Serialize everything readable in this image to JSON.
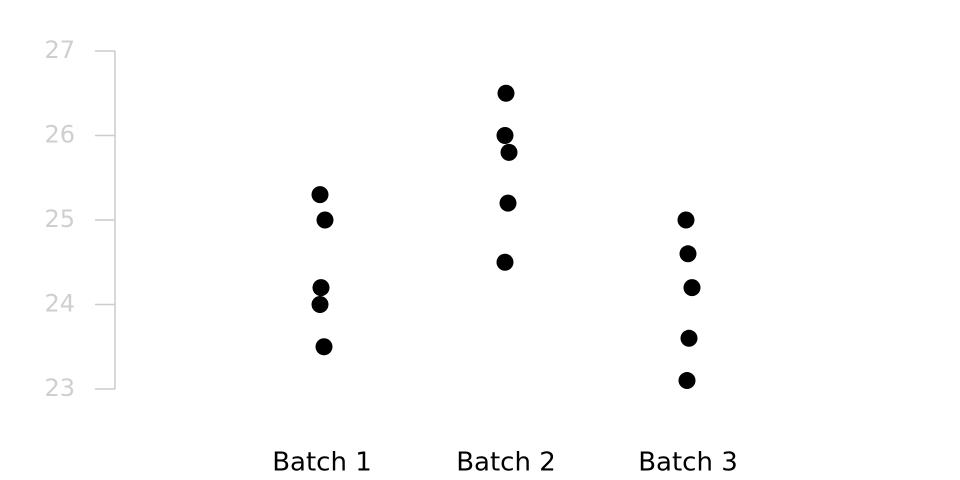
{
  "chart_data": {
    "type": "strip",
    "categories": [
      "Batch 1",
      "Batch 2",
      "Batch 3"
    ],
    "values": [
      [
        25.3,
        25.0,
        24.2,
        24.0,
        23.5
      ],
      [
        26.5,
        26.0,
        25.8,
        25.2,
        24.5
      ],
      [
        25.0,
        24.6,
        24.2,
        23.6,
        23.1
      ]
    ],
    "color": "#000000",
    "axis_color": "#cccccc",
    "ylim": [
      23,
      27
    ],
    "yticks": [
      23,
      24,
      25,
      26,
      27
    ],
    "grid": false
  }
}
